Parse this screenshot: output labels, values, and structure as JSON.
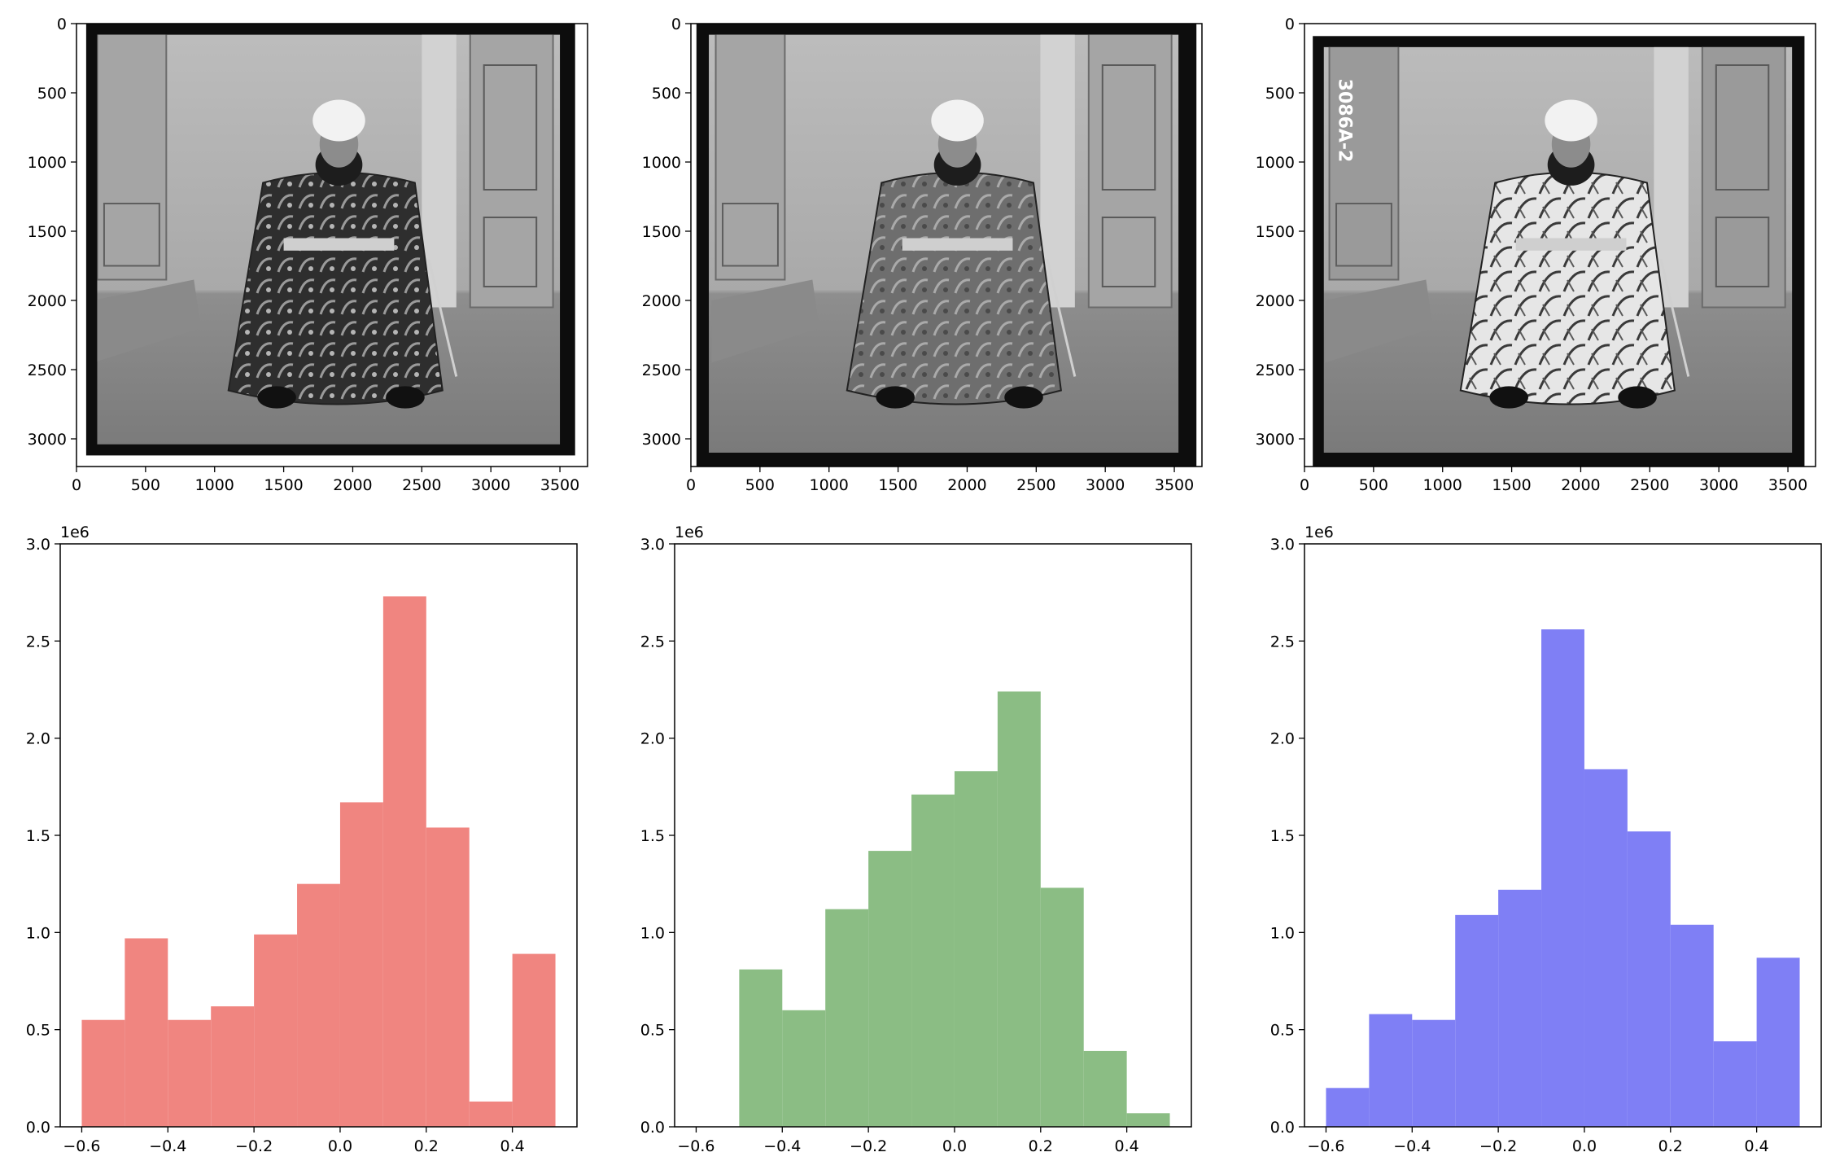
{
  "figure": {
    "colors": {
      "red": "#f08580",
      "green": "#8bbd84",
      "blue": "#7f7ff5",
      "axis": "#000000"
    }
  },
  "images": [
    {
      "name": "channel-photo-1",
      "xticks": [
        "0",
        "500",
        "1000",
        "1500",
        "2000",
        "2500",
        "3000",
        "3500"
      ],
      "yticks": [
        "0",
        "500",
        "1000",
        "1500",
        "2000",
        "2500",
        "3000"
      ],
      "xlim": [
        0,
        3700
      ],
      "ylim": [
        3200,
        0
      ]
    },
    {
      "name": "channel-photo-2",
      "xticks": [
        "0",
        "500",
        "1000",
        "1500",
        "2000",
        "2500",
        "3000",
        "3500"
      ],
      "yticks": [
        "0",
        "500",
        "1000",
        "1500",
        "2000",
        "2500",
        "3000"
      ],
      "xlim": [
        0,
        3700
      ],
      "ylim": [
        3200,
        0
      ]
    },
    {
      "name": "channel-photo-3",
      "xticks": [
        "0",
        "500",
        "1000",
        "1500",
        "2000",
        "2500",
        "3000",
        "3500"
      ],
      "yticks": [
        "0",
        "500",
        "1000",
        "1500",
        "2000",
        "2500",
        "3000"
      ],
      "xlim": [
        0,
        3700
      ],
      "ylim": [
        3200,
        0
      ],
      "plate_label": "3086A-2"
    }
  ],
  "chart_data": [
    {
      "type": "bar",
      "color": "red",
      "bin_edges": [
        -0.6,
        -0.5,
        -0.4,
        -0.3,
        -0.2,
        -0.1,
        0.0,
        0.1,
        0.2,
        0.3,
        0.4,
        0.5
      ],
      "values": [
        0.55,
        0.97,
        0.55,
        0.62,
        0.99,
        1.25,
        1.67,
        2.73,
        1.54,
        0.13,
        0.89
      ],
      "xlim": [
        -0.65,
        0.55
      ],
      "ylim": [
        0,
        3.0
      ],
      "xticks": [
        "−0.6",
        "−0.4",
        "−0.2",
        "0.0",
        "0.2",
        "0.4"
      ],
      "yticks": [
        "0.0",
        "0.5",
        "1.0",
        "1.5",
        "2.0",
        "2.5",
        "3.0"
      ],
      "y_multiplier": "1e6"
    },
    {
      "type": "bar",
      "color": "green",
      "bin_edges": [
        -0.5,
        -0.4,
        -0.3,
        -0.2,
        -0.1,
        0.0,
        0.1,
        0.2,
        0.3,
        0.4,
        0.5
      ],
      "values": [
        0.81,
        0.6,
        1.12,
        1.42,
        1.71,
        1.83,
        2.24,
        1.23,
        0.39,
        0.07
      ],
      "xlim": [
        -0.65,
        0.55
      ],
      "ylim": [
        0,
        3.0
      ],
      "xticks": [
        "−0.6",
        "−0.4",
        "−0.2",
        "0.0",
        "0.2",
        "0.4"
      ],
      "yticks": [
        "0.0",
        "0.5",
        "1.0",
        "1.5",
        "2.0",
        "2.5",
        "3.0"
      ],
      "y_multiplier": "1e6"
    },
    {
      "type": "bar",
      "color": "blue",
      "bin_edges": [
        -0.6,
        -0.5,
        -0.4,
        -0.3,
        -0.2,
        -0.1,
        0.0,
        0.1,
        0.2,
        0.3,
        0.4,
        0.5
      ],
      "values": [
        0.2,
        0.58,
        0.55,
        1.09,
        1.22,
        2.56,
        1.84,
        1.52,
        1.04,
        0.44,
        0.87
      ],
      "xlim": [
        -0.65,
        0.55
      ],
      "ylim": [
        0,
        3.0
      ],
      "xticks": [
        "−0.6",
        "−0.4",
        "−0.2",
        "0.0",
        "0.2",
        "0.4"
      ],
      "yticks": [
        "0.0",
        "0.5",
        "1.0",
        "1.5",
        "2.0",
        "2.5",
        "3.0"
      ],
      "y_multiplier": "1e6"
    }
  ]
}
